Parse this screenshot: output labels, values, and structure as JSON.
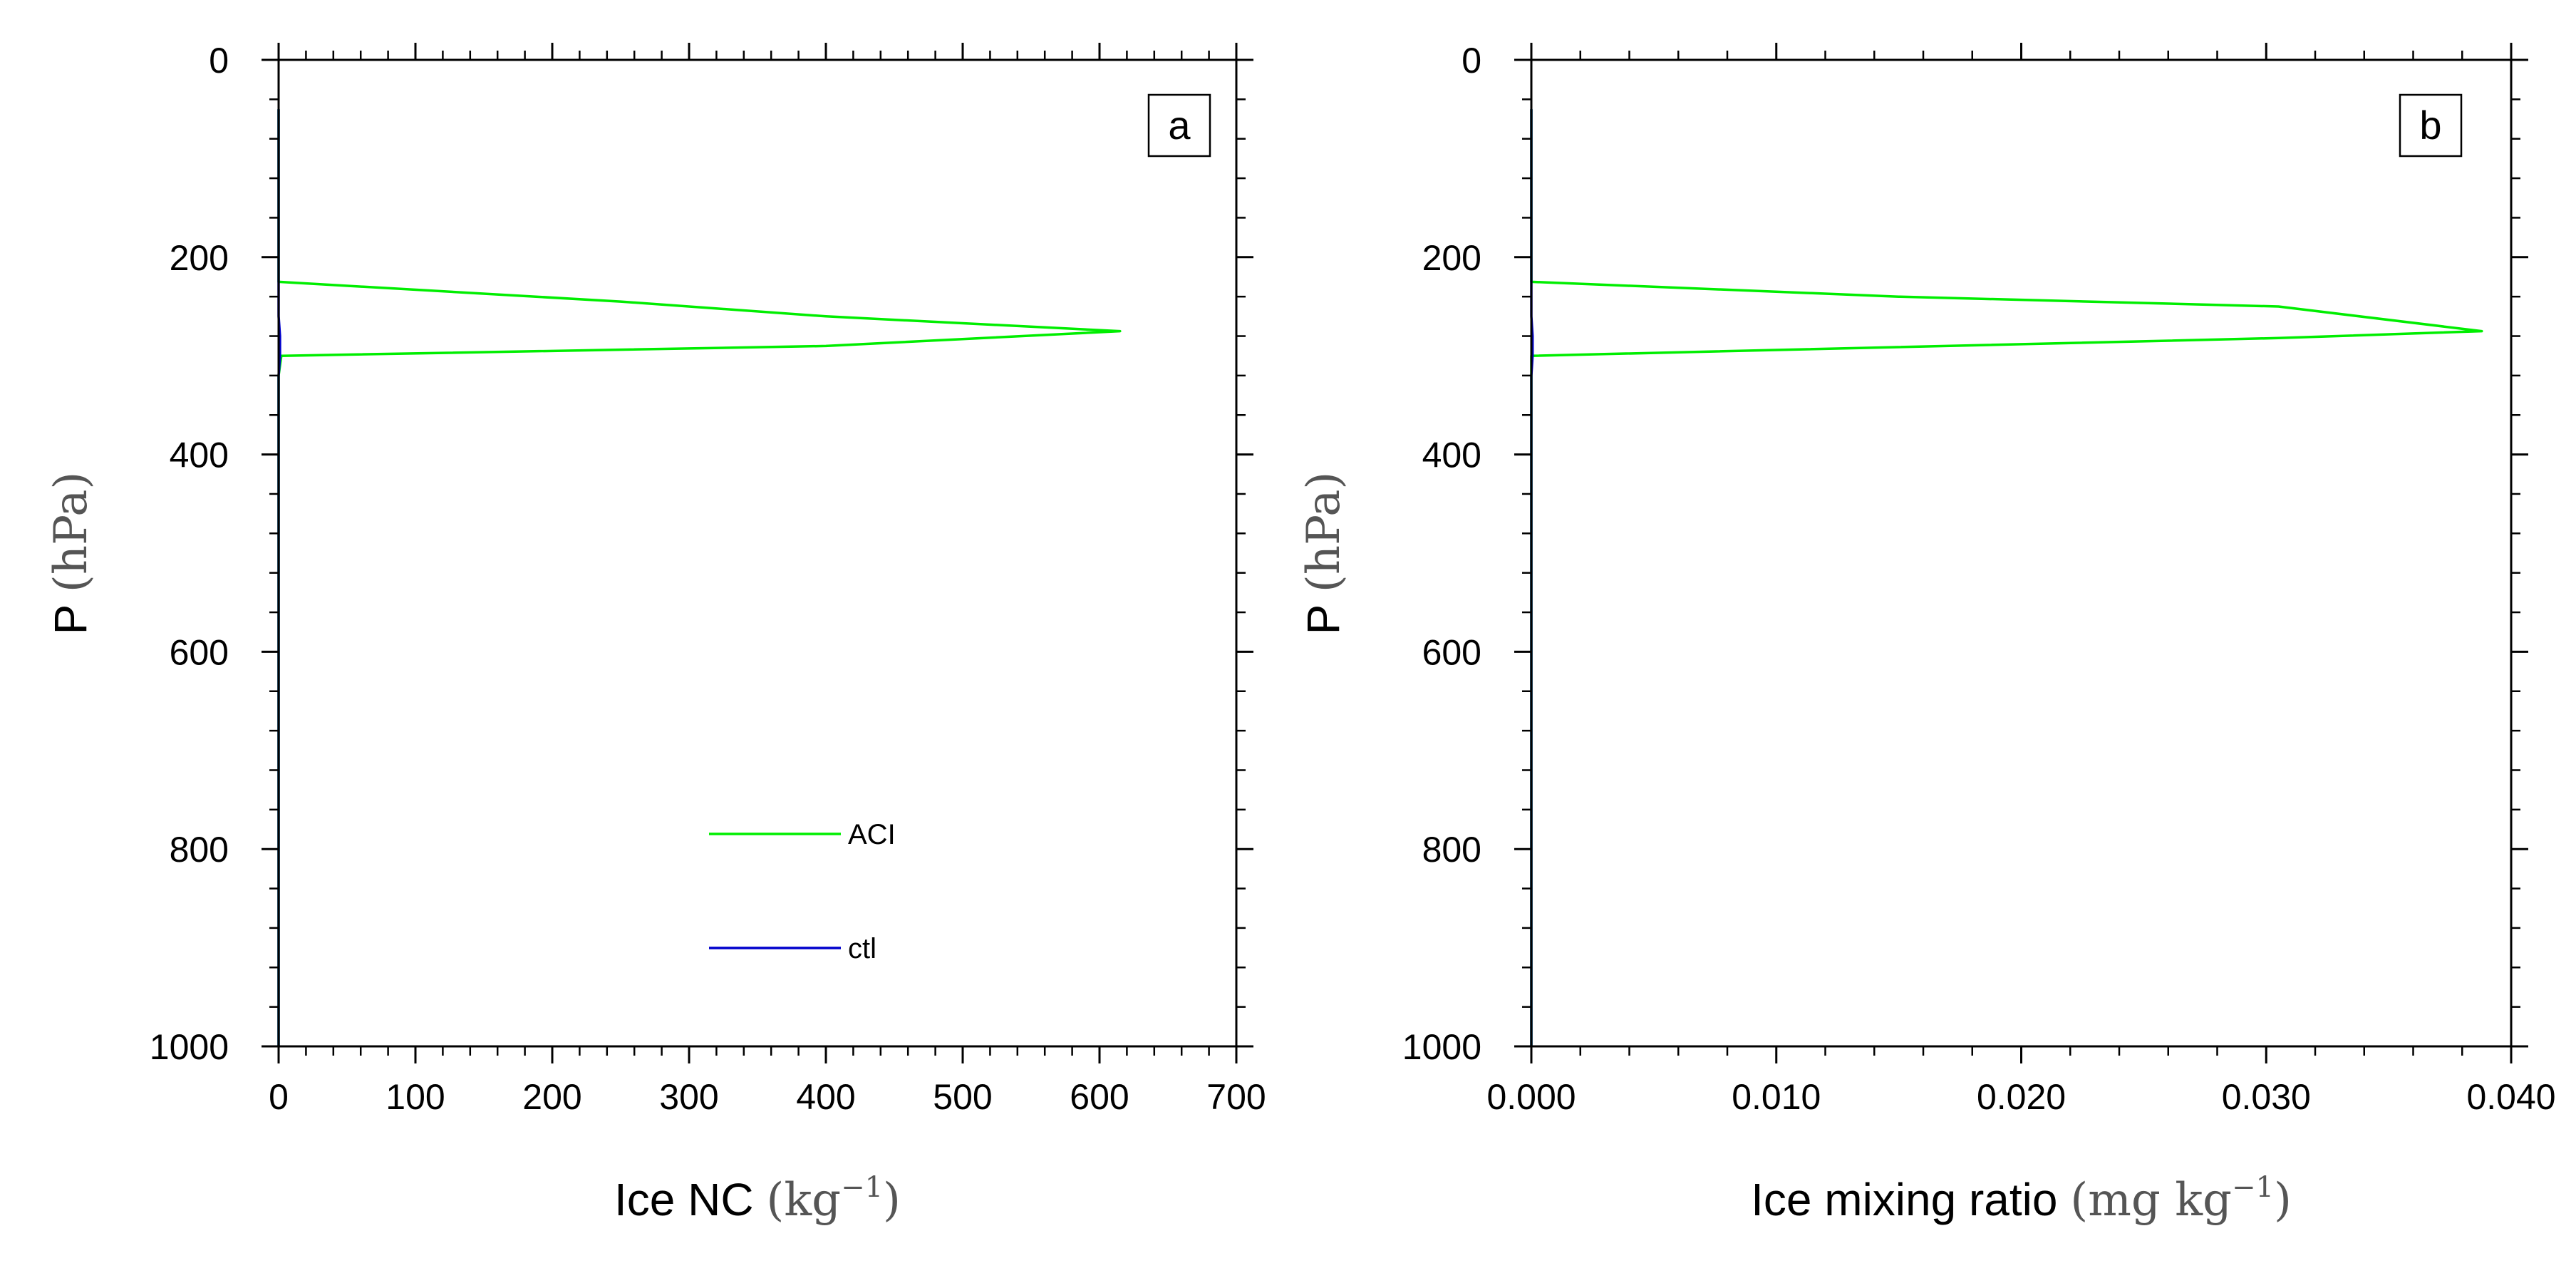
{
  "chart_data": [
    {
      "type": "line",
      "panel_label": "a",
      "title": "",
      "xlabel": "Ice NC",
      "xlabel_unit": "(kg",
      "xlabel_unit_sup": "−1",
      "xlabel_unit_end": ")",
      "ylabel": "P",
      "ylabel_unit": "(hPa)",
      "xlim": [
        0,
        700
      ],
      "ylim": [
        1000,
        0
      ],
      "y_inverted": true,
      "xticks": [
        0,
        100,
        200,
        300,
        400,
        500,
        600,
        700
      ],
      "xtick_labels": [
        "0",
        "100",
        "200",
        "300",
        "400",
        "500",
        "600",
        "700"
      ],
      "yticks": [
        0,
        200,
        400,
        600,
        800,
        1000
      ],
      "ytick_labels": [
        "0",
        "200",
        "400",
        "600",
        "800",
        "1000"
      ],
      "legend": {
        "location": "lower-center",
        "entries": [
          "ACI",
          "ctl"
        ]
      },
      "series": [
        {
          "name": "ACI",
          "color": "#00ee00",
          "points": [
            [
              0,
              1000
            ],
            [
              0,
              700
            ],
            [
              0,
              400
            ],
            [
              0,
              320
            ],
            [
              2,
              300
            ],
            [
              400,
              290
            ],
            [
              615,
              275
            ],
            [
              400,
              260
            ],
            [
              250,
              245
            ],
            [
              0,
              225
            ],
            [
              0,
              100
            ],
            [
              0,
              50
            ]
          ]
        },
        {
          "name": "ctl",
          "color": "#0000cc",
          "points": [
            [
              0,
              1000
            ],
            [
              0,
              400
            ],
            [
              0,
              320
            ],
            [
              1,
              300
            ],
            [
              1,
              280
            ],
            [
              0,
              260
            ],
            [
              0,
              50
            ]
          ]
        }
      ]
    },
    {
      "type": "line",
      "panel_label": "b",
      "title": "",
      "xlabel": "Ice mixing ratio",
      "xlabel_unit": "(mg  kg",
      "xlabel_unit_sup": "−1",
      "xlabel_unit_end": ")",
      "ylabel": "P",
      "ylabel_unit": "(hPa)",
      "xlim": [
        0,
        0.04
      ],
      "ylim": [
        1000,
        0
      ],
      "y_inverted": true,
      "xticks": [
        0,
        0.01,
        0.02,
        0.03,
        0.04
      ],
      "xtick_labels": [
        "0.000",
        "0.010",
        "0.020",
        "0.030",
        "0.040"
      ],
      "yticks": [
        0,
        200,
        400,
        600,
        800,
        1000
      ],
      "ytick_labels": [
        "0",
        "200",
        "400",
        "600",
        "800",
        "1000"
      ],
      "series": [
        {
          "name": "ACI",
          "color": "#00ee00",
          "points": [
            [
              0,
              1000
            ],
            [
              0,
              700
            ],
            [
              0,
              400
            ],
            [
              0,
              320
            ],
            [
              0,
              300
            ],
            [
              0.0305,
              282
            ],
            [
              0.0388,
              275
            ],
            [
              0.0305,
              250
            ],
            [
              0.015,
              240
            ],
            [
              0,
              225
            ],
            [
              0,
              100
            ],
            [
              0,
              50
            ]
          ]
        },
        {
          "name": "ctl",
          "color": "#0000cc",
          "points": [
            [
              0,
              1000
            ],
            [
              0,
              400
            ],
            [
              0,
              320
            ],
            [
              5e-05,
              300
            ],
            [
              5e-05,
              280
            ],
            [
              0,
              260
            ],
            [
              0,
              50
            ]
          ]
        }
      ]
    }
  ]
}
